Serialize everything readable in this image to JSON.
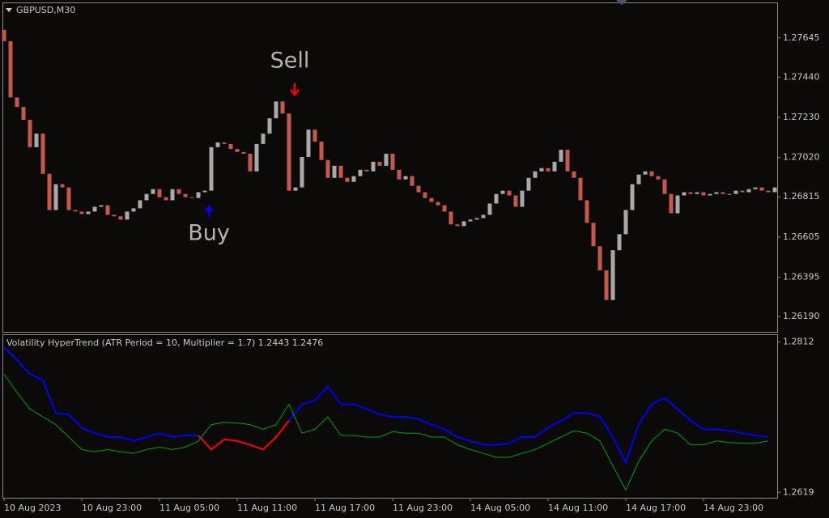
{
  "chart_data": [
    {
      "type": "candlestick",
      "title": "GBPUSD,M30",
      "categories": [
        "10 Aug 2023",
        null,
        null,
        null,
        null,
        null,
        null,
        null,
        null,
        null,
        null,
        null,
        "10 Aug 23:00",
        null,
        null,
        null,
        null,
        null,
        null,
        null,
        null,
        null,
        null,
        null,
        "11 Aug 05:00",
        null,
        null,
        null,
        null,
        null,
        null,
        null,
        null,
        null,
        null,
        null,
        "11 Aug 11:00",
        null,
        null,
        null,
        null,
        null,
        null,
        null,
        null,
        null,
        null,
        null,
        "11 Aug 17:00",
        null,
        null,
        null,
        null,
        null,
        null,
        null,
        null,
        null,
        null,
        null,
        "11 Aug 23:00",
        null,
        null,
        null,
        null,
        null,
        null,
        null,
        null,
        null,
        null,
        null,
        "14 Aug 05:00",
        null,
        null,
        null,
        null,
        null,
        null,
        null,
        null,
        null,
        null,
        null,
        "14 Aug 11:00",
        null,
        null,
        null,
        null,
        null,
        null,
        null,
        null,
        null,
        null,
        null,
        "14 Aug 17:00",
        null,
        null,
        null,
        null,
        null,
        null,
        null,
        null,
        null,
        null,
        null,
        "14 Aug 23:00",
        null,
        null,
        null,
        null,
        null,
        null,
        null,
        null,
        null,
        null,
        null
      ],
      "open": [
        1.27687,
        1.27628,
        1.27334,
        1.27284,
        1.27217,
        1.27074,
        1.27145,
        1.26935,
        1.26746,
        1.26881,
        1.26864,
        1.26746,
        1.26738,
        1.26725,
        1.26738,
        1.26763,
        1.26771,
        1.26721,
        1.26713,
        1.26696,
        1.26738,
        1.26755,
        1.26797,
        1.2683,
        1.26855,
        1.26813,
        1.26797,
        1.26855,
        1.2683,
        1.26813,
        1.26809,
        1.26839,
        1.26847,
        1.27074,
        1.27099,
        1.27091,
        1.27065,
        1.27049,
        1.2704,
        1.26948,
        1.27091,
        1.27145,
        1.27225,
        1.27313,
        1.2725,
        1.26847,
        1.26864,
        1.27023,
        1.27166,
        1.27103,
        1.27007,
        1.26914,
        1.26977,
        1.26914,
        1.26893,
        1.26923,
        1.26956,
        1.26948,
        1.26998,
        1.26977,
        1.2704,
        1.26956,
        1.26906,
        1.26923,
        1.26872,
        1.26839,
        1.26809,
        1.26788,
        1.26771,
        1.26738,
        1.26671,
        1.26662,
        1.26687,
        1.26696,
        1.26704,
        1.26721,
        1.2678,
        1.2683,
        1.26847,
        1.26822,
        1.26763,
        1.26847,
        1.26914,
        1.26948,
        1.26965,
        1.26948,
        1.26998,
        1.27061,
        1.26948,
        1.26914,
        1.26797,
        1.26679,
        1.26557,
        1.26431,
        1.26276,
        1.26536,
        1.2662,
        1.26746,
        1.26881,
        1.26931,
        1.26948,
        1.26923,
        1.26906,
        1.2683,
        1.26729,
        1.26822,
        1.26839,
        1.2683,
        1.26839,
        1.26822,
        1.2683,
        1.26839,
        1.2683,
        1.2683,
        1.26847,
        1.26839,
        1.26855,
        1.26864,
        1.26847,
        1.26839
      ],
      "close": [
        1.27628,
        1.27334,
        1.27284,
        1.27217,
        1.27074,
        1.27145,
        1.26935,
        1.26746,
        1.26881,
        1.26864,
        1.26746,
        1.26738,
        1.26725,
        1.26738,
        1.26763,
        1.26771,
        1.26721,
        1.26713,
        1.26696,
        1.26738,
        1.26755,
        1.26797,
        1.2683,
        1.26855,
        1.26813,
        1.26797,
        1.26855,
        1.2683,
        1.26813,
        1.26809,
        1.26839,
        1.26847,
        1.27074,
        1.27099,
        1.27091,
        1.27065,
        1.27049,
        1.2704,
        1.26948,
        1.27091,
        1.27145,
        1.27225,
        1.27313,
        1.2725,
        1.26847,
        1.26864,
        1.27023,
        1.27166,
        1.27103,
        1.27007,
        1.26914,
        1.26977,
        1.26914,
        1.26893,
        1.26923,
        1.26956,
        1.26948,
        1.26998,
        1.26977,
        1.2704,
        1.26956,
        1.26906,
        1.26923,
        1.26872,
        1.26839,
        1.26809,
        1.26788,
        1.26771,
        1.26738,
        1.26671,
        1.26662,
        1.26687,
        1.26696,
        1.26704,
        1.26721,
        1.2678,
        1.2683,
        1.26847,
        1.26822,
        1.26763,
        1.26847,
        1.26914,
        1.26948,
        1.26965,
        1.26948,
        1.26998,
        1.27061,
        1.26948,
        1.26914,
        1.26797,
        1.26679,
        1.26557,
        1.26431,
        1.26276,
        1.26536,
        1.2662,
        1.26746,
        1.26881,
        1.26931,
        1.26948,
        1.26923,
        1.26906,
        1.2683,
        1.26729,
        1.26822,
        1.26839,
        1.2683,
        1.26839,
        1.26822,
        1.2683,
        1.26839,
        1.2683,
        1.2683,
        1.26847,
        1.26839,
        1.26855,
        1.26864,
        1.26847,
        1.26839,
        1.26864
      ],
      "up_color": "#a9a9a9",
      "down_color": "#c4584a",
      "annotations": [
        "Buy",
        "Sell"
      ],
      "ylim": [
        1.2611,
        1.2783
      ],
      "yticks": [
        1.27645,
        {
          "value": 1.2744,
          "label": "1.27440"
        },
        {
          "value": 1.2723,
          "label": "1.27230"
        },
        {
          "value": 1.2702,
          "label": "1.27020"
        },
        1.26815,
        1.26605,
        1.26395,
        {
          "value": 1.2619,
          "label": "1.26190"
        }
      ]
    },
    {
      "type": "line",
      "title": "Volatility HyperTrend (ATR Period = 10, Multiplier = 1.7) 1.2443 1.2476",
      "series": [
        {
          "color": "#0000ff",
          "width": 2,
          "values": [
            1.2805,
            1.2789,
            1.2771,
            1.2763,
            1.2721,
            1.2719,
            1.2702,
            1.2695,
            1.269,
            1.269,
            1.2685,
            1.269,
            1.2695,
            1.269,
            1.2692,
            1.2692,
            null,
            null,
            null,
            null,
            null,
            null,
            1.2711,
            1.2732,
            1.2737,
            1.2755,
            1.2732,
            1.2732,
            1.2726,
            1.2719,
            1.2716,
            1.2716,
            1.2713,
            1.2706,
            1.27,
            1.269,
            1.2685,
            1.268,
            1.268,
            1.2682,
            1.269,
            1.269,
            1.2702,
            1.2711,
            1.2721,
            1.2721,
            1.2716,
            1.269,
            1.2657,
            1.2706,
            1.2732,
            1.274,
            1.2726,
            1.2711,
            1.27,
            1.27,
            1.2698,
            1.2695,
            1.2692,
            1.269
          ]
        },
        {
          "color": "#ff0000",
          "width": 2,
          "values": [
            null,
            null,
            null,
            null,
            null,
            null,
            null,
            null,
            null,
            null,
            null,
            null,
            null,
            null,
            null,
            1.2692,
            1.2674,
            1.2687,
            1.2685,
            1.268,
            1.2674,
            1.269,
            1.2711,
            null,
            null,
            null,
            null,
            null,
            null,
            null,
            null,
            null,
            null,
            null,
            null,
            null,
            null,
            null,
            null,
            null,
            null,
            null,
            null,
            null,
            null,
            null,
            null,
            null,
            null,
            null,
            null,
            null,
            null,
            null,
            null,
            null,
            null,
            null,
            null,
            null
          ]
        },
        {
          "color": "#00a000",
          "width": 1,
          "values": [
            1.2771,
            1.2747,
            1.2726,
            1.2716,
            1.2706,
            1.269,
            1.2674,
            1.2671,
            1.2674,
            1.2671,
            1.2669,
            1.2674,
            1.2677,
            1.2674,
            1.2677,
            1.2685,
            1.2706,
            1.2709,
            1.2708,
            1.2706,
            1.27,
            1.2706,
            1.2732,
            1.2695,
            1.27,
            1.2716,
            1.2692,
            1.2692,
            1.269,
            1.269,
            1.2697,
            1.2695,
            1.2695,
            1.269,
            1.269,
            1.268,
            1.2674,
            1.2669,
            1.2664,
            1.2664,
            1.2669,
            1.2674,
            1.2682,
            1.269,
            1.2698,
            1.2695,
            1.2685,
            1.2653,
            1.2622,
            1.2659,
            1.2685,
            1.27,
            1.2695,
            1.268,
            1.268,
            1.2685,
            1.2683,
            1.2682,
            1.2682,
            1.2685
          ]
        }
      ],
      "ylim": [
        1.2612,
        1.2822
      ],
      "yticks": [
        1.2812,
        1.2619
      ]
    }
  ]
}
